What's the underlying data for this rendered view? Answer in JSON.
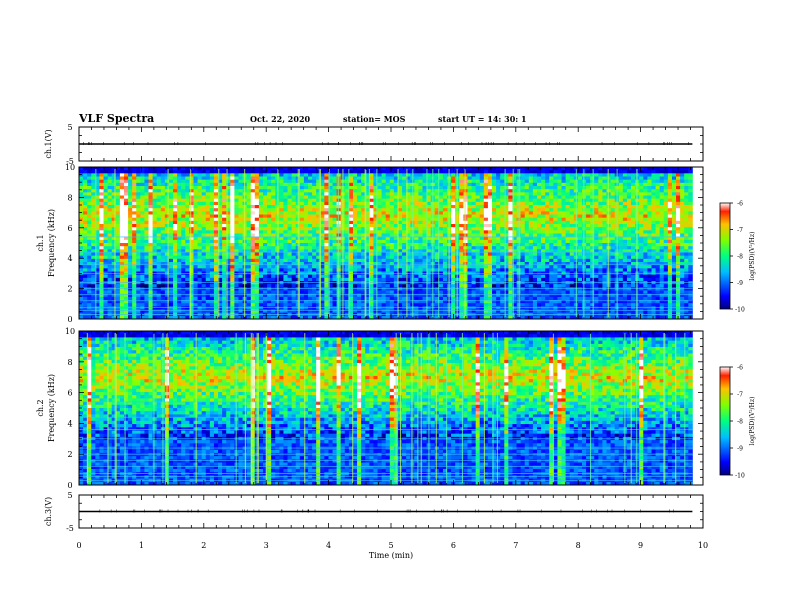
{
  "header": {
    "title": "VLF Spectra",
    "date": "Oct. 22, 2020",
    "station": "station= MOS",
    "start": "start UT =  14: 30: 1"
  },
  "chart_data": [
    {
      "type": "line",
      "ylabel": "ch.1(V)",
      "ylim": [
        -5,
        5
      ],
      "yticks": [
        "5",
        "-5"
      ],
      "series": [
        {
          "x": [
            0,
            9.83
          ],
          "y": [
            0,
            0
          ]
        }
      ]
    },
    {
      "type": "heatmap",
      "ylabel": "ch.1\nFrequency (kHz)",
      "ylim": [
        0,
        10
      ],
      "yticks": [
        "0",
        "2",
        "4",
        "6",
        "8",
        "10"
      ],
      "xlim": [
        0,
        10
      ],
      "data_extent_x_min": 9.83,
      "colorbar": {
        "label": "log(PSD)(V²/Hz)",
        "range": [
          -10,
          -6
        ],
        "ticks": [
          "-6",
          "-7",
          "-8",
          "-9",
          "-10"
        ]
      },
      "band_kHz": [
        2,
        9.5
      ],
      "peak_kHz": 6.8
    },
    {
      "type": "heatmap",
      "ylabel": "ch.2\nFrequency (kHz)",
      "ylim": [
        0,
        10
      ],
      "yticks": [
        "0",
        "2",
        "4",
        "6",
        "8",
        "10"
      ],
      "xlim": [
        0,
        10
      ],
      "data_extent_x_min": 9.83,
      "colorbar": {
        "label": "log(PSD)(V²/Hz)",
        "range": [
          -10,
          -6
        ],
        "ticks": [
          "-6",
          "-7",
          "-8",
          "-9",
          "-10"
        ]
      },
      "band_kHz": [
        3,
        9.5
      ],
      "peak_kHz": 7.0
    },
    {
      "type": "line",
      "ylabel": "ch.3(V)",
      "ylim": [
        -5,
        5
      ],
      "yticks": [
        "5",
        "-5"
      ],
      "series": [
        {
          "x": [
            0,
            9.83
          ],
          "y": [
            0,
            0
          ]
        }
      ],
      "xlabel": "Time (min)",
      "xticks": [
        "0",
        "1",
        "2",
        "3",
        "4",
        "5",
        "6",
        "7",
        "8",
        "9",
        "10"
      ]
    }
  ]
}
